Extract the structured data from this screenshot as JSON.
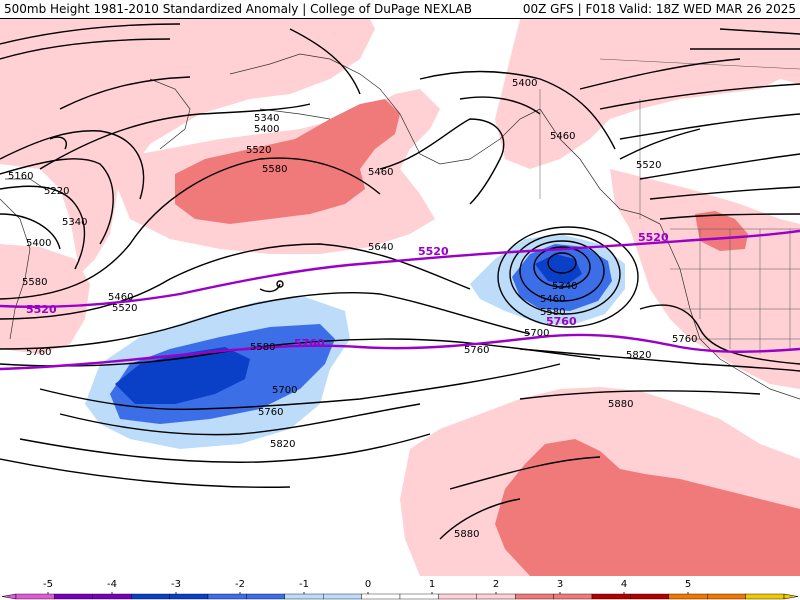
{
  "header": {
    "title_left": "500mb Height 1981-2010 Standardized Anomaly | College of DuPage NEXLAB",
    "title_right": "00Z GFS | F018 Valid: 18Z WED MAR 26 2025"
  },
  "colors": {
    "neg5": "#e05ad8",
    "neg4": "#7a00b8",
    "neg3": "#0a3fc8",
    "neg2": "#3c6ee8",
    "neg1": "#bcdcfa",
    "zero": "#ffffff",
    "pos1": "#ffd0d4",
    "pos2": "#f07a7a",
    "pos3": "#b40000",
    "pos4": "#f07800",
    "pos5": "#f0c800",
    "contour": "#000000",
    "highlight_contour": "#9a00c8"
  },
  "colorbar": {
    "ticks": [
      "-5",
      "-4",
      "-3",
      "-2",
      "-1",
      "0",
      "1",
      "2",
      "3",
      "4",
      "5"
    ]
  },
  "map": {
    "height_labels": [
      "5160",
      "5220",
      "5340",
      "5400",
      "5580",
      "5460",
      "5520",
      "5760",
      "5340",
      "5400",
      "5520",
      "5580",
      "5460",
      "5400",
      "5460",
      "5520",
      "5640",
      "5340",
      "5460",
      "5580",
      "5700",
      "5580",
      "5700",
      "5760",
      "5820",
      "5760",
      "5880",
      "5820",
      "5760",
      "5880"
    ],
    "purple_labels": [
      "5520",
      "5520",
      "5520",
      "5760",
      "5760"
    ]
  }
}
